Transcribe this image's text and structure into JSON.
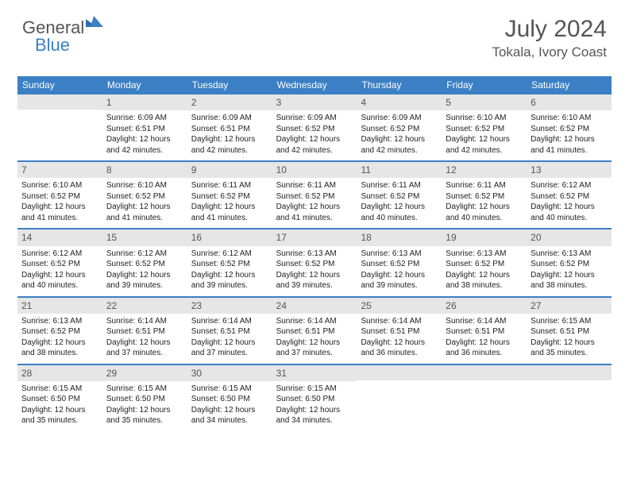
{
  "logo": {
    "part1": "General",
    "part2": "Blue"
  },
  "header": {
    "title": "July 2024",
    "location": "Tokala, Ivory Coast"
  },
  "colors": {
    "accent": "#3b7fc4",
    "daynum_bg": "#e6e6e6",
    "text": "#333333"
  },
  "weekdays": [
    "Sunday",
    "Monday",
    "Tuesday",
    "Wednesday",
    "Thursday",
    "Friday",
    "Saturday"
  ],
  "weeks": [
    [
      {
        "n": "",
        "sunrise": "",
        "sunset": "",
        "daylight1": "",
        "daylight2": ""
      },
      {
        "n": "1",
        "sunrise": "Sunrise: 6:09 AM",
        "sunset": "Sunset: 6:51 PM",
        "daylight1": "Daylight: 12 hours",
        "daylight2": "and 42 minutes."
      },
      {
        "n": "2",
        "sunrise": "Sunrise: 6:09 AM",
        "sunset": "Sunset: 6:51 PM",
        "daylight1": "Daylight: 12 hours",
        "daylight2": "and 42 minutes."
      },
      {
        "n": "3",
        "sunrise": "Sunrise: 6:09 AM",
        "sunset": "Sunset: 6:52 PM",
        "daylight1": "Daylight: 12 hours",
        "daylight2": "and 42 minutes."
      },
      {
        "n": "4",
        "sunrise": "Sunrise: 6:09 AM",
        "sunset": "Sunset: 6:52 PM",
        "daylight1": "Daylight: 12 hours",
        "daylight2": "and 42 minutes."
      },
      {
        "n": "5",
        "sunrise": "Sunrise: 6:10 AM",
        "sunset": "Sunset: 6:52 PM",
        "daylight1": "Daylight: 12 hours",
        "daylight2": "and 42 minutes."
      },
      {
        "n": "6",
        "sunrise": "Sunrise: 6:10 AM",
        "sunset": "Sunset: 6:52 PM",
        "daylight1": "Daylight: 12 hours",
        "daylight2": "and 41 minutes."
      }
    ],
    [
      {
        "n": "7",
        "sunrise": "Sunrise: 6:10 AM",
        "sunset": "Sunset: 6:52 PM",
        "daylight1": "Daylight: 12 hours",
        "daylight2": "and 41 minutes."
      },
      {
        "n": "8",
        "sunrise": "Sunrise: 6:10 AM",
        "sunset": "Sunset: 6:52 PM",
        "daylight1": "Daylight: 12 hours",
        "daylight2": "and 41 minutes."
      },
      {
        "n": "9",
        "sunrise": "Sunrise: 6:11 AM",
        "sunset": "Sunset: 6:52 PM",
        "daylight1": "Daylight: 12 hours",
        "daylight2": "and 41 minutes."
      },
      {
        "n": "10",
        "sunrise": "Sunrise: 6:11 AM",
        "sunset": "Sunset: 6:52 PM",
        "daylight1": "Daylight: 12 hours",
        "daylight2": "and 41 minutes."
      },
      {
        "n": "11",
        "sunrise": "Sunrise: 6:11 AM",
        "sunset": "Sunset: 6:52 PM",
        "daylight1": "Daylight: 12 hours",
        "daylight2": "and 40 minutes."
      },
      {
        "n": "12",
        "sunrise": "Sunrise: 6:11 AM",
        "sunset": "Sunset: 6:52 PM",
        "daylight1": "Daylight: 12 hours",
        "daylight2": "and 40 minutes."
      },
      {
        "n": "13",
        "sunrise": "Sunrise: 6:12 AM",
        "sunset": "Sunset: 6:52 PM",
        "daylight1": "Daylight: 12 hours",
        "daylight2": "and 40 minutes."
      }
    ],
    [
      {
        "n": "14",
        "sunrise": "Sunrise: 6:12 AM",
        "sunset": "Sunset: 6:52 PM",
        "daylight1": "Daylight: 12 hours",
        "daylight2": "and 40 minutes."
      },
      {
        "n": "15",
        "sunrise": "Sunrise: 6:12 AM",
        "sunset": "Sunset: 6:52 PM",
        "daylight1": "Daylight: 12 hours",
        "daylight2": "and 39 minutes."
      },
      {
        "n": "16",
        "sunrise": "Sunrise: 6:12 AM",
        "sunset": "Sunset: 6:52 PM",
        "daylight1": "Daylight: 12 hours",
        "daylight2": "and 39 minutes."
      },
      {
        "n": "17",
        "sunrise": "Sunrise: 6:13 AM",
        "sunset": "Sunset: 6:52 PM",
        "daylight1": "Daylight: 12 hours",
        "daylight2": "and 39 minutes."
      },
      {
        "n": "18",
        "sunrise": "Sunrise: 6:13 AM",
        "sunset": "Sunset: 6:52 PM",
        "daylight1": "Daylight: 12 hours",
        "daylight2": "and 39 minutes."
      },
      {
        "n": "19",
        "sunrise": "Sunrise: 6:13 AM",
        "sunset": "Sunset: 6:52 PM",
        "daylight1": "Daylight: 12 hours",
        "daylight2": "and 38 minutes."
      },
      {
        "n": "20",
        "sunrise": "Sunrise: 6:13 AM",
        "sunset": "Sunset: 6:52 PM",
        "daylight1": "Daylight: 12 hours",
        "daylight2": "and 38 minutes."
      }
    ],
    [
      {
        "n": "21",
        "sunrise": "Sunrise: 6:13 AM",
        "sunset": "Sunset: 6:52 PM",
        "daylight1": "Daylight: 12 hours",
        "daylight2": "and 38 minutes."
      },
      {
        "n": "22",
        "sunrise": "Sunrise: 6:14 AM",
        "sunset": "Sunset: 6:51 PM",
        "daylight1": "Daylight: 12 hours",
        "daylight2": "and 37 minutes."
      },
      {
        "n": "23",
        "sunrise": "Sunrise: 6:14 AM",
        "sunset": "Sunset: 6:51 PM",
        "daylight1": "Daylight: 12 hours",
        "daylight2": "and 37 minutes."
      },
      {
        "n": "24",
        "sunrise": "Sunrise: 6:14 AM",
        "sunset": "Sunset: 6:51 PM",
        "daylight1": "Daylight: 12 hours",
        "daylight2": "and 37 minutes."
      },
      {
        "n": "25",
        "sunrise": "Sunrise: 6:14 AM",
        "sunset": "Sunset: 6:51 PM",
        "daylight1": "Daylight: 12 hours",
        "daylight2": "and 36 minutes."
      },
      {
        "n": "26",
        "sunrise": "Sunrise: 6:14 AM",
        "sunset": "Sunset: 6:51 PM",
        "daylight1": "Daylight: 12 hours",
        "daylight2": "and 36 minutes."
      },
      {
        "n": "27",
        "sunrise": "Sunrise: 6:15 AM",
        "sunset": "Sunset: 6:51 PM",
        "daylight1": "Daylight: 12 hours",
        "daylight2": "and 35 minutes."
      }
    ],
    [
      {
        "n": "28",
        "sunrise": "Sunrise: 6:15 AM",
        "sunset": "Sunset: 6:50 PM",
        "daylight1": "Daylight: 12 hours",
        "daylight2": "and 35 minutes."
      },
      {
        "n": "29",
        "sunrise": "Sunrise: 6:15 AM",
        "sunset": "Sunset: 6:50 PM",
        "daylight1": "Daylight: 12 hours",
        "daylight2": "and 35 minutes."
      },
      {
        "n": "30",
        "sunrise": "Sunrise: 6:15 AM",
        "sunset": "Sunset: 6:50 PM",
        "daylight1": "Daylight: 12 hours",
        "daylight2": "and 34 minutes."
      },
      {
        "n": "31",
        "sunrise": "Sunrise: 6:15 AM",
        "sunset": "Sunset: 6:50 PM",
        "daylight1": "Daylight: 12 hours",
        "daylight2": "and 34 minutes."
      },
      {
        "n": "",
        "sunrise": "",
        "sunset": "",
        "daylight1": "",
        "daylight2": ""
      },
      {
        "n": "",
        "sunrise": "",
        "sunset": "",
        "daylight1": "",
        "daylight2": ""
      },
      {
        "n": "",
        "sunrise": "",
        "sunset": "",
        "daylight1": "",
        "daylight2": ""
      }
    ]
  ]
}
